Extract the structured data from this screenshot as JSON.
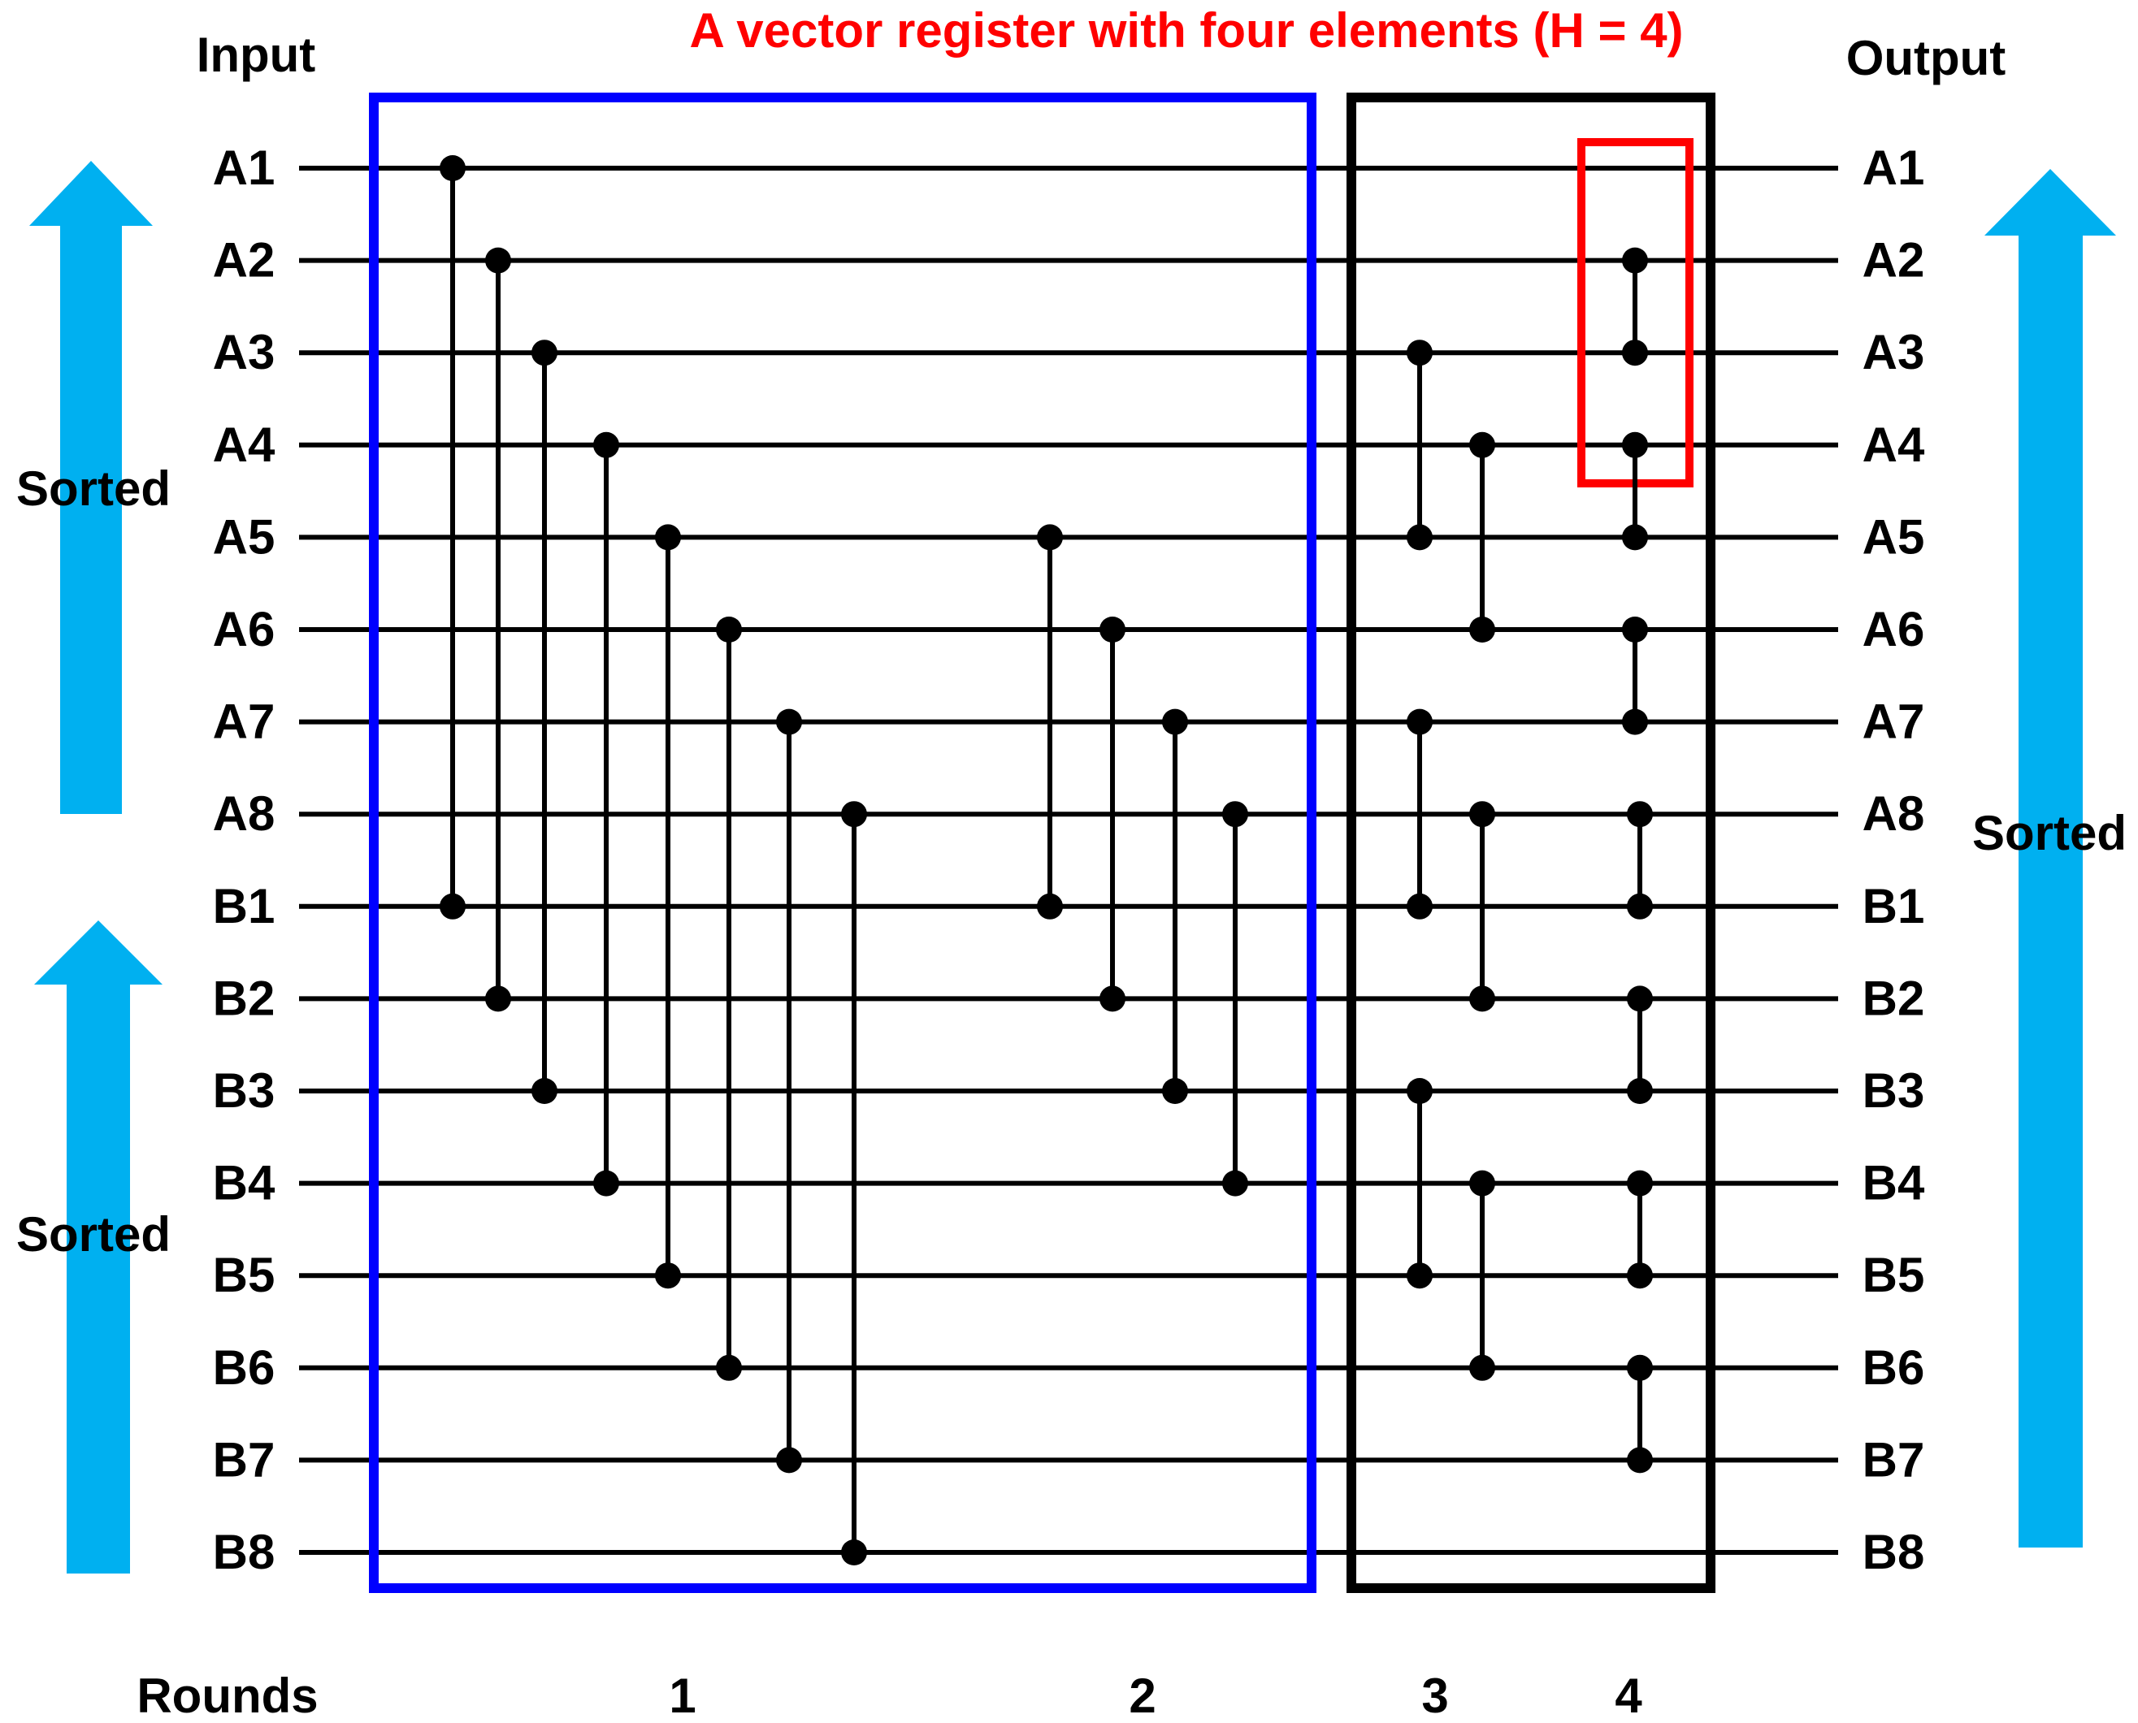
{
  "title": "A vector register with four elements (H = 4)",
  "input_header": "Input",
  "output_header": "Output",
  "sorted_label": "Sorted",
  "rounds_label": "Rounds",
  "rounds": [
    "1",
    "2",
    "3",
    "4"
  ],
  "wires": [
    "A1",
    "A2",
    "A3",
    "A4",
    "A5",
    "A6",
    "A7",
    "A8",
    "B1",
    "B2",
    "B3",
    "B4",
    "B5",
    "B6",
    "B7",
    "B8"
  ],
  "comparators": {
    "round1": [
      [
        0,
        8
      ],
      [
        1,
        9
      ],
      [
        2,
        10
      ],
      [
        3,
        11
      ],
      [
        4,
        12
      ],
      [
        5,
        13
      ],
      [
        6,
        14
      ],
      [
        7,
        15
      ]
    ],
    "round2": [
      [
        4,
        8
      ],
      [
        5,
        9
      ],
      [
        6,
        10
      ],
      [
        7,
        11
      ]
    ],
    "round3": [
      [
        2,
        4
      ],
      [
        3,
        5
      ],
      [
        6,
        8
      ],
      [
        7,
        9
      ],
      [
        10,
        12
      ],
      [
        11,
        13
      ]
    ],
    "round4": [
      [
        1,
        2
      ],
      [
        3,
        4
      ],
      [
        5,
        6
      ],
      [
        7,
        8
      ],
      [
        9,
        10
      ],
      [
        11,
        12
      ],
      [
        13,
        14
      ]
    ]
  },
  "colors": {
    "round12_box": "#0000ff",
    "round34_box": "#000000",
    "register_highlight": "#ff0000",
    "arrow": "#00b0f0",
    "title": "#ff0000",
    "line": "#000000"
  }
}
